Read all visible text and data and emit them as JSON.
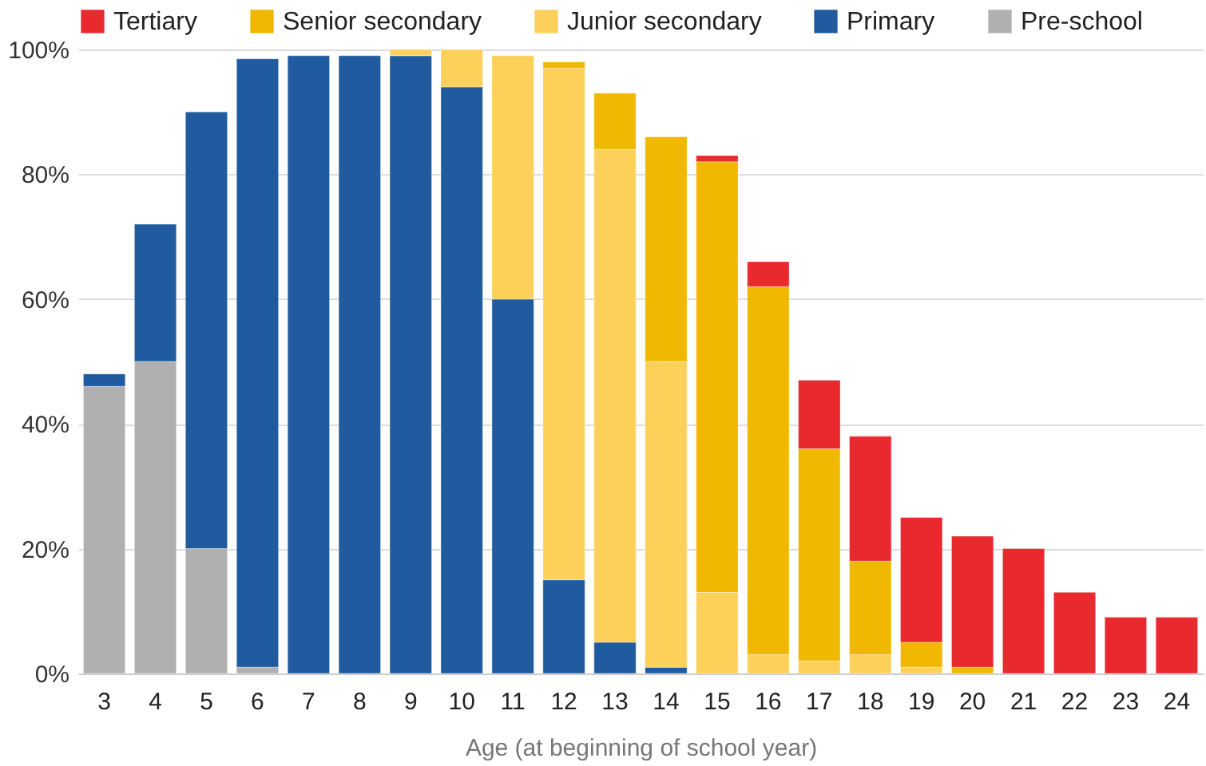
{
  "chart_data": {
    "type": "bar",
    "stacked": true,
    "xlabel": "Age (at beginning of school year)",
    "categories": [
      "3",
      "4",
      "5",
      "6",
      "7",
      "8",
      "9",
      "10",
      "11",
      "12",
      "13",
      "14",
      "15",
      "16",
      "17",
      "18",
      "19",
      "20",
      "21",
      "22",
      "23",
      "24"
    ],
    "series": [
      {
        "name": "Pre-school",
        "color": "#b0b0b0",
        "values": [
          46,
          50,
          20,
          1,
          null,
          null,
          null,
          null,
          null,
          null,
          null,
          null,
          null,
          null,
          null,
          null,
          null,
          null,
          null,
          null,
          null,
          null
        ]
      },
      {
        "name": "Primary",
        "color": "#1f5b9e",
        "values": [
          2,
          22,
          70,
          97.5,
          99,
          99,
          99,
          94,
          60,
          15,
          5,
          1,
          null,
          null,
          null,
          null,
          null,
          null,
          null,
          null,
          null,
          null
        ]
      },
      {
        "name": "Junior secondary",
        "color": "#fdd05a",
        "values": [
          null,
          null,
          null,
          null,
          null,
          null,
          1,
          6,
          39,
          82,
          79,
          49,
          13,
          3,
          2,
          3,
          1,
          null,
          null,
          null,
          null,
          null
        ]
      },
      {
        "name": "Senior secondary",
        "color": "#f0b800",
        "values": [
          null,
          null,
          null,
          null,
          null,
          null,
          null,
          null,
          null,
          1,
          9,
          36,
          69,
          59,
          34,
          15,
          4,
          1,
          null,
          null,
          null,
          null
        ]
      },
      {
        "name": "Tertiary",
        "color": "#e8292e",
        "values": [
          null,
          null,
          null,
          null,
          null,
          null,
          null,
          null,
          null,
          null,
          null,
          null,
          1,
          4,
          11,
          20,
          20,
          21,
          20,
          13,
          9,
          9
        ]
      }
    ],
    "ylim": [
      0,
      100
    ],
    "yticks": [
      {
        "value": 0,
        "label": "0%"
      },
      {
        "value": 20,
        "label": "20%"
      },
      {
        "value": 40,
        "label": "40%"
      },
      {
        "value": 60,
        "label": "60%"
      },
      {
        "value": 80,
        "label": "80%"
      },
      {
        "value": 100,
        "label": "100%"
      }
    ],
    "grid": "y",
    "legend": "top"
  }
}
